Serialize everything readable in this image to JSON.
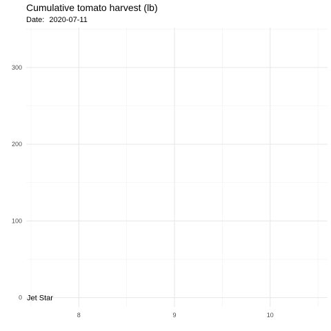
{
  "chart_data": {
    "type": "bar",
    "title": "Cumulative tomato harvest (lb)",
    "subtitle_label": "Date:",
    "subtitle_date": "2020-07-11",
    "xlabel": "",
    "ylabel": "",
    "xlim": [
      7.45,
      10.6
    ],
    "ylim": [
      -12,
      352
    ],
    "x_ticks": [
      8,
      9,
      10
    ],
    "x_minor": [
      7.5,
      8.5,
      9.5,
      10.5
    ],
    "y_ticks": [
      0,
      100,
      200,
      300
    ],
    "y_minor": [
      50,
      150,
      250,
      350
    ],
    "grid": true,
    "legend": "none",
    "series": [
      {
        "label": "Jet Star",
        "x": 7.45,
        "value": 0,
        "color": "#000000"
      }
    ]
  }
}
